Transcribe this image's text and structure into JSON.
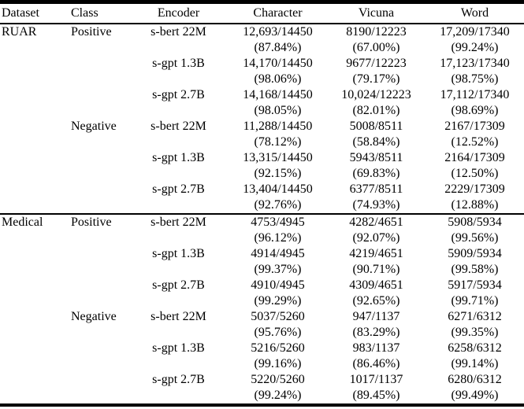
{
  "table": {
    "columns": [
      "Dataset",
      "Class",
      "Encoder",
      "Character",
      "Vicuna",
      "Word"
    ],
    "sections": [
      {
        "dataset": "RUAR",
        "groups": [
          {
            "class": "Positive",
            "rows": [
              {
                "encoder": "s-bert 22M",
                "character": {
                  "value": "12,693/14450",
                  "pct": "(87.84%)"
                },
                "vicuna": {
                  "value": "8190/12223",
                  "pct": "(67.00%)"
                },
                "word": {
                  "value": "17,209/17340",
                  "pct": "(99.24%)"
                }
              },
              {
                "encoder": "s-gpt 1.3B",
                "character": {
                  "value": "14,170/14450",
                  "pct": "(98.06%)"
                },
                "vicuna": {
                  "value": "9677/12223",
                  "pct": "(79.17%)"
                },
                "word": {
                  "value": "17,123/17340",
                  "pct": "(98.75%)"
                }
              },
              {
                "encoder": "s-gpt 2.7B",
                "character": {
                  "value": "14,168/14450",
                  "pct": "(98.05%)"
                },
                "vicuna": {
                  "value": "10,024/12223",
                  "pct": "(82.01%)"
                },
                "word": {
                  "value": "17,112/17340",
                  "pct": "(98.69%)"
                }
              }
            ]
          },
          {
            "class": "Negative",
            "rows": [
              {
                "encoder": "s-bert 22M",
                "character": {
                  "value": "11,288/14450",
                  "pct": "(78.12%)"
                },
                "vicuna": {
                  "value": "5008/8511",
                  "pct": "(58.84%)"
                },
                "word": {
                  "value": "2167/17309",
                  "pct": "(12.52%)"
                }
              },
              {
                "encoder": "s-gpt 1.3B",
                "character": {
                  "value": "13,315/14450",
                  "pct": "(92.15%)"
                },
                "vicuna": {
                  "value": "5943/8511",
                  "pct": "(69.83%)"
                },
                "word": {
                  "value": "2164/17309",
                  "pct": "(12.50%)"
                }
              },
              {
                "encoder": "s-gpt 2.7B",
                "character": {
                  "value": "13,404/14450",
                  "pct": "(92.76%)"
                },
                "vicuna": {
                  "value": "6377/8511",
                  "pct": "(74.93%)"
                },
                "word": {
                  "value": "2229/17309",
                  "pct": "(12.88%)"
                }
              }
            ]
          }
        ]
      },
      {
        "dataset": "Medical",
        "groups": [
          {
            "class": "Positive",
            "rows": [
              {
                "encoder": "s-bert 22M",
                "character": {
                  "value": "4753/4945",
                  "pct": "(96.12%)"
                },
                "vicuna": {
                  "value": "4282/4651",
                  "pct": "(92.07%)"
                },
                "word": {
                  "value": "5908/5934",
                  "pct": "(99.56%)"
                }
              },
              {
                "encoder": "s-gpt 1.3B",
                "character": {
                  "value": "4914/4945",
                  "pct": "(99.37%)"
                },
                "vicuna": {
                  "value": "4219/4651",
                  "pct": "(90.71%)"
                },
                "word": {
                  "value": "5909/5934",
                  "pct": "(99.58%)"
                }
              },
              {
                "encoder": "s-gpt 2.7B",
                "character": {
                  "value": "4910/4945",
                  "pct": "(99.29%)"
                },
                "vicuna": {
                  "value": "4309/4651",
                  "pct": "(92.65%)"
                },
                "word": {
                  "value": "5917/5934",
                  "pct": "(99.71%)"
                }
              }
            ]
          },
          {
            "class": "Negative",
            "rows": [
              {
                "encoder": "s-bert 22M",
                "character": {
                  "value": "5037/5260",
                  "pct": "(95.76%)"
                },
                "vicuna": {
                  "value": "947/1137",
                  "pct": "(83.29%)"
                },
                "word": {
                  "value": "6271/6312",
                  "pct": "(99.35%)"
                }
              },
              {
                "encoder": "s-gpt 1.3B",
                "character": {
                  "value": "5216/5260",
                  "pct": "(99.16%)"
                },
                "vicuna": {
                  "value": "983/1137",
                  "pct": "(86.46%)"
                },
                "word": {
                  "value": "6258/6312",
                  "pct": "(99.14%)"
                }
              },
              {
                "encoder": "s-gpt 2.7B",
                "character": {
                  "value": "5220/5260",
                  "pct": "(99.24%)"
                },
                "vicuna": {
                  "value": "1017/1137",
                  "pct": "(89.45%)"
                },
                "word": {
                  "value": "6280/6312",
                  "pct": "(99.49%)"
                }
              }
            ]
          }
        ]
      }
    ]
  },
  "colors": {
    "text": "#000000",
    "rule": "#000000",
    "background": "#ffffff"
  }
}
